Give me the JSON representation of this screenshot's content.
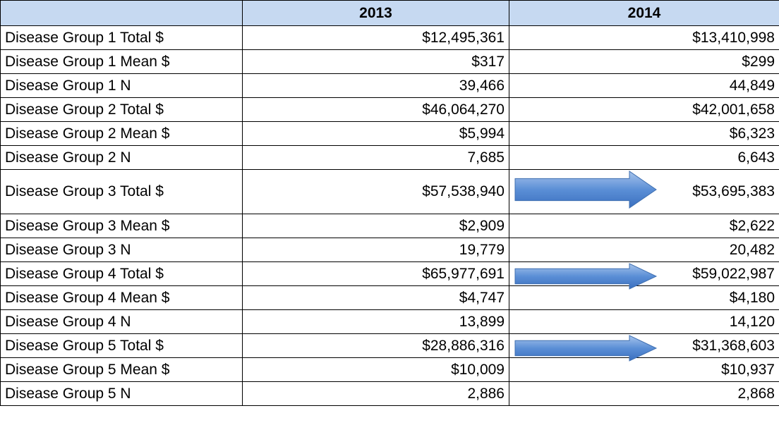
{
  "table": {
    "columns": [
      "2013",
      "2014"
    ],
    "rows": [
      [
        "Disease Group 1 Total $",
        "$12,495,361",
        "$13,410,998"
      ],
      [
        "Disease Group 1 Mean $",
        "$317",
        "$299"
      ],
      [
        "Disease Group 1 N",
        "39,466",
        "44,849"
      ],
      [
        "Disease Group 2 Total $",
        "$46,064,270",
        "$42,001,658"
      ],
      [
        "Disease Group 2 Mean $",
        "$5,994",
        "$6,323"
      ],
      [
        "Disease Group 2 N",
        "7,685",
        "6,643"
      ],
      [
        "Disease Group 3 Total $",
        "$57,538,940",
        "$53,695,383"
      ],
      [
        "Disease Group 3 Mean $",
        "$2,909",
        "$2,622"
      ],
      [
        "Disease Group 3 N",
        "19,779",
        "20,482"
      ],
      [
        "Disease Group 4 Total $",
        "$65,977,691",
        "$59,022,987"
      ],
      [
        "Disease Group 4 Mean $",
        "$4,747",
        "$4,180"
      ],
      [
        "Disease Group 4 N",
        "13,899",
        "14,120"
      ],
      [
        "Disease Group 5 Total $",
        "$28,886,316",
        "$31,368,603"
      ],
      [
        "Disease Group 5 Mean $",
        "$10,009",
        "$10,937"
      ],
      [
        "Disease Group 5 N",
        "2,886",
        "2,868"
      ]
    ]
  }
}
